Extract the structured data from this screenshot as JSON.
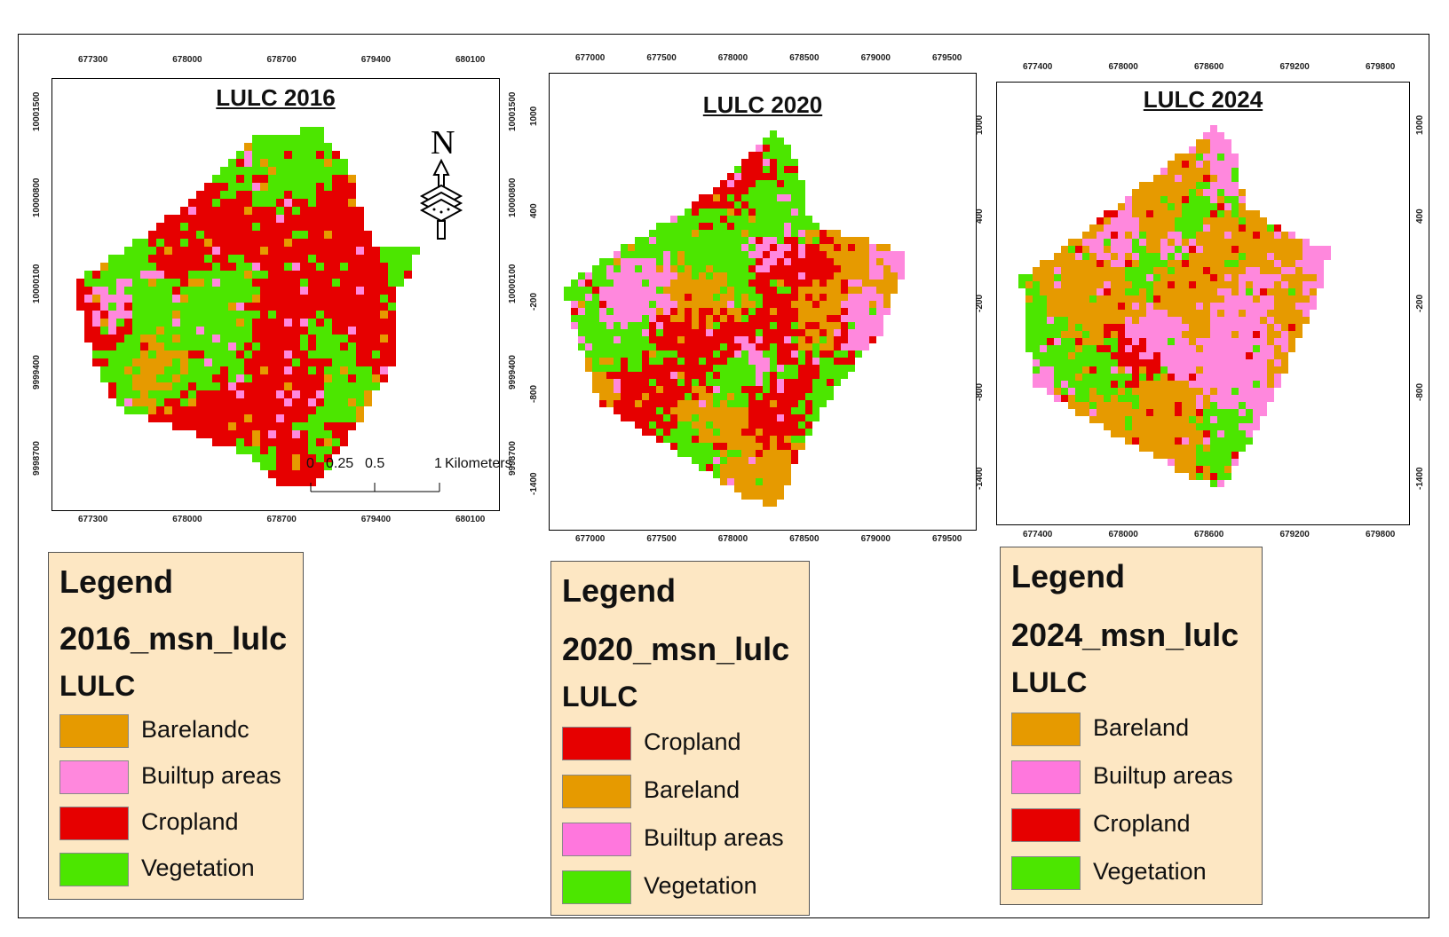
{
  "colors": {
    "bareland": "#e69a00",
    "builtup": "#ff88dd",
    "cropland": "#e60000",
    "vegetation": "#4ce600"
  },
  "maps": [
    {
      "title": "LULC 2016",
      "top_ticks": [
        "677300",
        "678000",
        "678700",
        "679400",
        "680100"
      ],
      "bottom_ticks": [
        "677300",
        "678000",
        "678700",
        "679400",
        "680100"
      ],
      "left_ticks": [
        "10001500",
        "10000800",
        "10000100",
        "9999400",
        "9998700"
      ],
      "right_ticks": [
        "10001500",
        "10000800",
        "10000100",
        "9999400",
        "9998700"
      ],
      "north_icon": "north-arrow-icon",
      "north_label": "N",
      "scale": {
        "labels": [
          "0",
          "0.25",
          "0.5",
          "1"
        ],
        "unit": "Kilometers"
      },
      "legend": {
        "title": "Legend",
        "layer": "2016_msn_lulc",
        "field": "LULC",
        "items": [
          {
            "label": "Barelandc",
            "color": "#e69a00"
          },
          {
            "label": "Builtup areas",
            "color": "#ff88dd"
          },
          {
            "label": "Cropland",
            "color": "#e60000"
          },
          {
            "label": "Vegetation",
            "color": "#4ce600"
          }
        ]
      }
    },
    {
      "title": "LULC 2020",
      "top_ticks": [
        "677000",
        "677500",
        "678000",
        "678500",
        "679000",
        "679500"
      ],
      "bottom_ticks": [
        "677000",
        "677500",
        "678000",
        "678500",
        "679000",
        "679500"
      ],
      "left_ticks": [
        "1000",
        "400",
        "-200",
        "-800",
        "-1400"
      ],
      "right_ticks": [
        "1000",
        "400",
        "-200",
        "-800",
        "-1400"
      ],
      "legend": {
        "title": "Legend",
        "layer": "2020_msn_lulc",
        "field": "LULC",
        "items": [
          {
            "label": "Cropland",
            "color": "#e60000"
          },
          {
            "label": "Bareland",
            "color": "#e69a00"
          },
          {
            "label": "Builtup areas",
            "color": "#ff77dd"
          },
          {
            "label": "Vegetation",
            "color": "#4ce600"
          }
        ]
      }
    },
    {
      "title": "LULC 2024",
      "top_ticks": [
        "677400",
        "678000",
        "678600",
        "679200",
        "679800"
      ],
      "bottom_ticks": [
        "677400",
        "678000",
        "678600",
        "679200",
        "679800"
      ],
      "left_ticks": [
        "1000",
        "400",
        "-200",
        "-800",
        "-1400"
      ],
      "right_ticks": [
        "1000",
        "400",
        "-200",
        "-800",
        "-1400"
      ],
      "legend": {
        "title": "Legend",
        "layer": "2024_msn_lulc",
        "field": "LULC",
        "items": [
          {
            "label": "Bareland",
            "color": "#e69a00"
          },
          {
            "label": "Builtup areas",
            "color": "#ff77dd"
          },
          {
            "label": "Cropland",
            "color": "#e60000"
          },
          {
            "label": "Vegetation",
            "color": "#4ce600"
          }
        ]
      }
    }
  ]
}
